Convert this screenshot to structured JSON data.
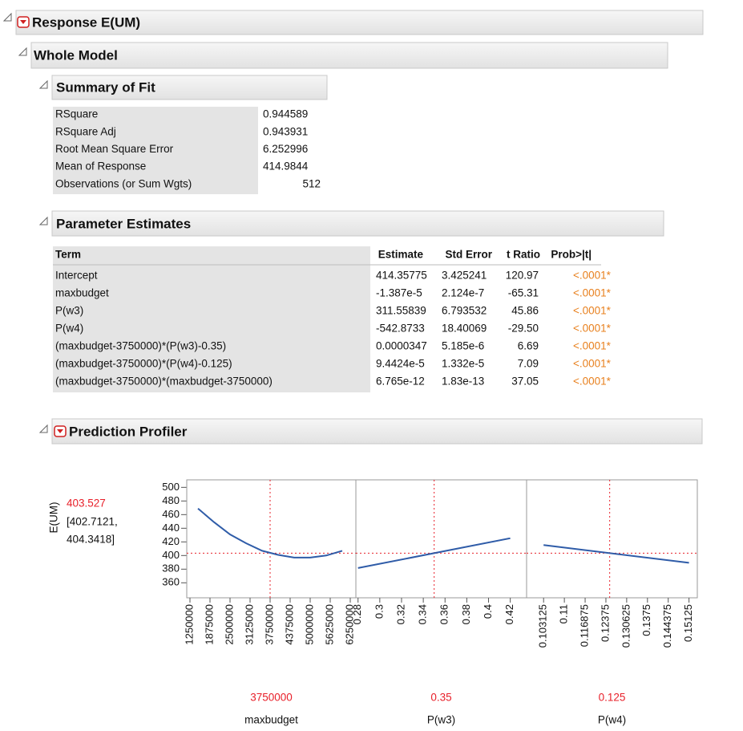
{
  "response_title": "Response E(UM)",
  "whole_model_title": "Whole Model",
  "summary_of_fit": {
    "title": "Summary of Fit",
    "rows": [
      [
        "RSquare",
        "0.944589"
      ],
      [
        "RSquare Adj",
        "0.943931"
      ],
      [
        "Root Mean Square Error",
        "6.252996"
      ],
      [
        "Mean of Response",
        "414.9844"
      ],
      [
        "Observations (or Sum Wgts)",
        "512"
      ]
    ]
  },
  "parameter_estimates": {
    "title": "Parameter Estimates",
    "columns": [
      "Term",
      "Estimate",
      "Std Error",
      "t Ratio",
      "Prob>|t|"
    ],
    "rows": [
      [
        "Intercept",
        "414.35775",
        "3.425241",
        "120.97",
        "<.0001*"
      ],
      [
        "maxbudget",
        "-1.387e-5",
        "2.124e-7",
        "-65.31",
        "<.0001*"
      ],
      [
        "P(w3)",
        "311.55839",
        "6.793532",
        "45.86",
        "<.0001*"
      ],
      [
        "P(w4)",
        "-542.8733",
        "18.40069",
        "-29.50",
        "<.0001*"
      ],
      [
        "(maxbudget-3750000)*(P(w3)-0.35)",
        "0.0000347",
        "5.185e-6",
        "6.69",
        "<.0001*"
      ],
      [
        "(maxbudget-3750000)*(P(w4)-0.125)",
        "9.4424e-5",
        "1.332e-5",
        "7.09",
        "<.0001*"
      ],
      [
        "(maxbudget-3750000)*(maxbudget-3750000)",
        "6.765e-12",
        "1.83e-13",
        "37.05",
        "<.0001*"
      ]
    ]
  },
  "prediction_profiler": {
    "title": "Prediction Profiler",
    "y_label": "E(UM)",
    "prediction": 403.527,
    "interval": [
      "[402.7121,",
      "404.3418]"
    ],
    "ylim": [
      338,
      511
    ],
    "yticks": [
      360,
      380,
      400,
      420,
      440,
      460,
      480,
      500
    ],
    "curve_color": "#2f5ca8",
    "reference_color": "#e8202a",
    "panels": [
      {
        "x_label": "maxbudget",
        "current": 3750000,
        "xlim": [
          1150000,
          6425000
        ],
        "xticks": [
          1250000,
          1875000,
          2500000,
          3125000,
          3750000,
          4375000,
          5000000,
          5625000,
          6250000
        ],
        "x": [
          1500000,
          2000000,
          2500000,
          3000000,
          3500000,
          4000000,
          4500000,
          5000000,
          5500000,
          6000000
        ],
        "values": [
          469,
          449,
          431,
          418,
          407,
          401,
          397,
          397,
          400,
          407
        ]
      },
      {
        "x_label": "P(w3)",
        "current": 0.35,
        "xlim": [
          0.278,
          0.435
        ],
        "xticks": [
          0.28,
          0.3,
          0.32,
          0.34,
          0.36,
          0.38,
          0.4,
          0.42
        ],
        "x": [
          0.28,
          0.42
        ],
        "values": [
          381.7,
          425.3
        ]
      },
      {
        "x_label": "P(w4)",
        "current": 0.125,
        "xlim": [
          0.0975,
          0.154
        ],
        "xticks": [
          0.103125,
          0.11,
          0.116875,
          0.12375,
          0.130625,
          0.1375,
          0.144375,
          0.15125
        ],
        "x": [
          0.103125,
          0.15125
        ],
        "values": [
          415.4,
          389.3
        ]
      }
    ]
  }
}
